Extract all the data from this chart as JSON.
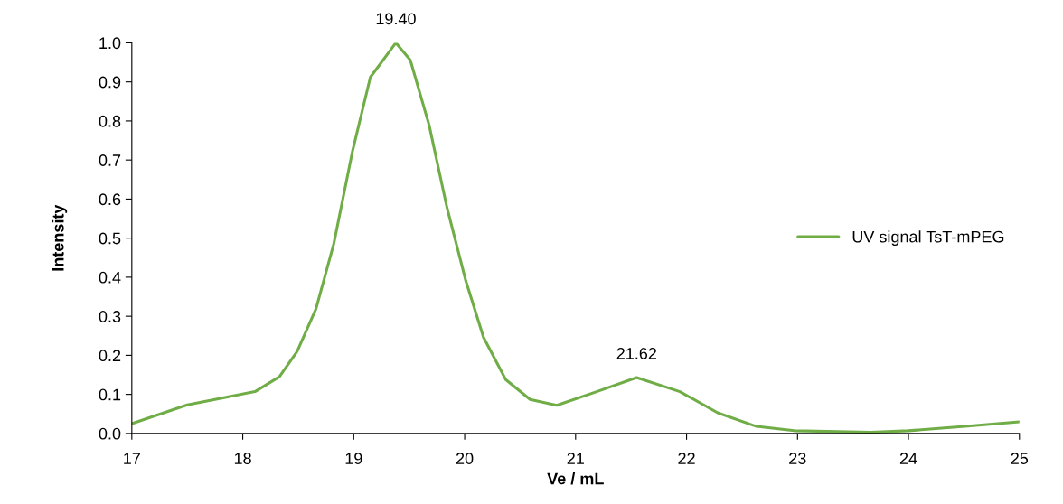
{
  "chart_data": {
    "type": "line",
    "xlabel": "Ve / mL",
    "ylabel": "Intensity",
    "x": [
      17.0,
      17.5,
      17.78,
      18.11,
      18.33,
      18.49,
      18.66,
      18.82,
      18.99,
      19.15,
      19.38,
      19.51,
      19.68,
      19.84,
      20.01,
      20.17,
      20.37,
      20.59,
      20.83,
      21.19,
      21.55,
      21.94,
      22.28,
      22.63,
      22.97,
      23.66,
      24.0,
      24.51,
      25.0
    ],
    "series": [
      {
        "name": "UV signal TsT-mPEG",
        "color": "#70ad47",
        "values": [
          0.025,
          0.073,
          0.089,
          0.107,
          0.145,
          0.21,
          0.319,
          0.485,
          0.724,
          0.912,
          1.0,
          0.956,
          0.789,
          0.579,
          0.391,
          0.246,
          0.138,
          0.087,
          0.072,
          0.107,
          0.143,
          0.107,
          0.053,
          0.018,
          0.007,
          0.003,
          0.007,
          0.018,
          0.03
        ]
      }
    ],
    "xlim": [
      17,
      25
    ],
    "xticks": [
      17,
      18,
      19,
      20,
      21,
      22,
      23,
      24,
      25
    ],
    "ylim": [
      0,
      1.0
    ],
    "yticks": [
      {
        "value": 0,
        "label": "0.0"
      },
      {
        "value": 0.1,
        "label": "0.1"
      },
      {
        "value": 0.2,
        "label": "0.2"
      },
      {
        "value": 0.3,
        "label": "0.3"
      },
      {
        "value": 0.4,
        "label": "0.4"
      },
      {
        "value": 0.5,
        "label": "0.5"
      },
      {
        "value": 0.6,
        "label": "0.6"
      },
      {
        "value": 0.7,
        "label": "0.7"
      },
      {
        "value": 0.8,
        "label": "0.8"
      },
      {
        "value": 0.9,
        "label": "0.9"
      },
      {
        "value": 1.0,
        "label": "1.0"
      }
    ],
    "annotations": [
      {
        "text": "19.40",
        "x": 19.38,
        "y": 1.0
      },
      {
        "text": "21.62",
        "x": 21.55,
        "y": 0.143
      }
    ],
    "legend": "right",
    "grid": false,
    "marker": "none",
    "line_style": "solid"
  }
}
